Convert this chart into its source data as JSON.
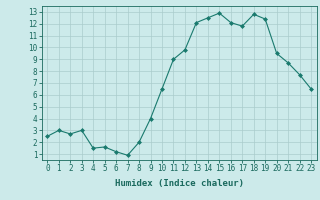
{
  "x": [
    0,
    1,
    2,
    3,
    4,
    5,
    6,
    7,
    8,
    9,
    10,
    11,
    12,
    13,
    14,
    15,
    16,
    17,
    18,
    19,
    20,
    21,
    22,
    23
  ],
  "y": [
    2.5,
    3.0,
    2.7,
    3.0,
    1.5,
    1.6,
    1.2,
    0.9,
    2.0,
    4.0,
    6.5,
    9.0,
    9.8,
    12.1,
    12.5,
    12.9,
    12.1,
    11.8,
    12.8,
    12.4,
    9.5,
    8.7,
    7.7,
    6.5
  ],
  "line_color": "#1a7a6e",
  "marker": "D",
  "marker_size": 2,
  "bg_color": "#cceaea",
  "grid_color": "#aacccc",
  "xlabel": "Humidex (Indice chaleur)",
  "xlim": [
    -0.5,
    23.5
  ],
  "ylim": [
    0.5,
    13.5
  ],
  "yticks": [
    1,
    2,
    3,
    4,
    5,
    6,
    7,
    8,
    9,
    10,
    11,
    12,
    13
  ],
  "xticks": [
    0,
    1,
    2,
    3,
    4,
    5,
    6,
    7,
    8,
    9,
    10,
    11,
    12,
    13,
    14,
    15,
    16,
    17,
    18,
    19,
    20,
    21,
    22,
    23
  ],
  "xlabel_fontsize": 6.5,
  "tick_fontsize": 5.5,
  "tick_color": "#1a6a5e",
  "axis_color": "#1a6a5e",
  "linewidth": 0.8
}
